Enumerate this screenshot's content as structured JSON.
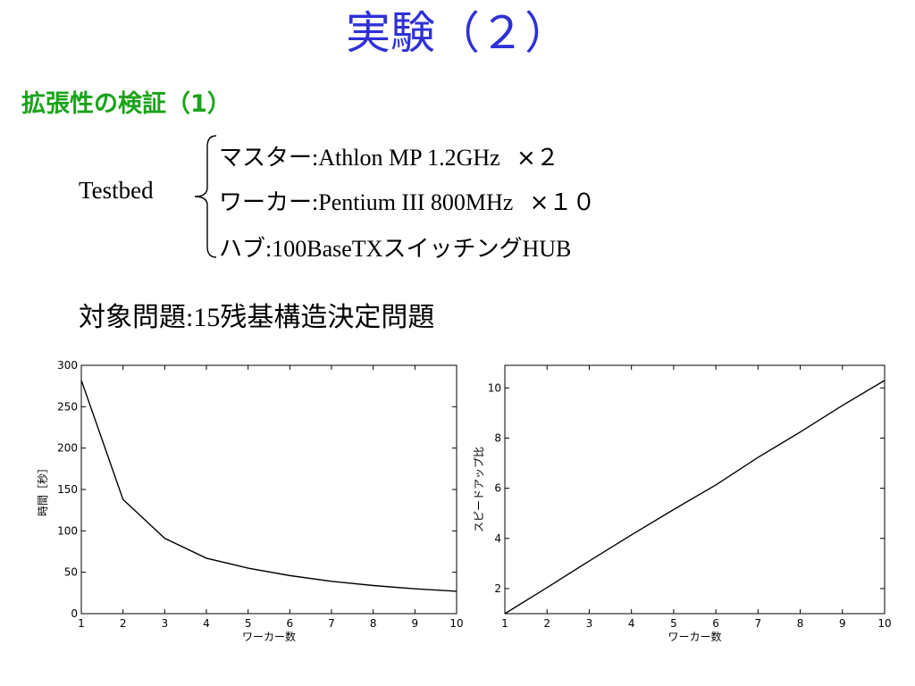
{
  "title": "実験（２）",
  "subtitle": "拡張性の検証（1）",
  "testbed": {
    "label": "Testbed",
    "lines": [
      {
        "jp": "マスター",
        "sep": ":",
        "en": "Athlon MP 1.2GHz",
        "tail": "×２"
      },
      {
        "jp": "ワーカー",
        "sep": ":",
        "en": "Pentium III 800MHz",
        "tail": "×１０"
      },
      {
        "jp": "ハブ",
        "sep": ":",
        "en": "100BaseTX",
        "jp2": "スイッチング",
        "en2": "HUB"
      }
    ]
  },
  "target": {
    "jp": "対象問題",
    "sep": ":",
    "num": "15",
    "rest": "残基構造決定問題"
  },
  "colors": {
    "title": "#2f31d6",
    "subtitle": "#1aa31a",
    "line": "#000000"
  },
  "chart_data": [
    {
      "type": "line",
      "title": "",
      "xlabel": "ワーカー数",
      "ylabel": "時間［秒］",
      "xlim": [
        1,
        10
      ],
      "ylim": [
        0,
        300
      ],
      "xticks": [
        1,
        2,
        3,
        4,
        5,
        6,
        7,
        8,
        9,
        10
      ],
      "yticks": [
        0,
        50,
        100,
        150,
        200,
        250,
        300
      ],
      "x": [
        1,
        2,
        3,
        4,
        5,
        6,
        7,
        8,
        9,
        10
      ],
      "series": [
        {
          "values": [
            282,
            138,
            91,
            67,
            55,
            46,
            39,
            34,
            30,
            27
          ]
        }
      ]
    },
    {
      "type": "line",
      "title": "",
      "xlabel": "ワーカー数",
      "ylabel": "スピードアップ比",
      "xlim": [
        1,
        10
      ],
      "ylim": [
        1,
        10.9
      ],
      "xticks": [
        1,
        2,
        3,
        4,
        5,
        6,
        7,
        8,
        9,
        10
      ],
      "yticks": [
        2,
        4,
        6,
        8,
        10
      ],
      "x": [
        1,
        2,
        3,
        4,
        5,
        6,
        7,
        8,
        9,
        10
      ],
      "series": [
        {
          "values": [
            1,
            2.04,
            3.1,
            4.14,
            5.15,
            6.13,
            7.23,
            8.24,
            9.3,
            10.3
          ]
        }
      ]
    }
  ]
}
